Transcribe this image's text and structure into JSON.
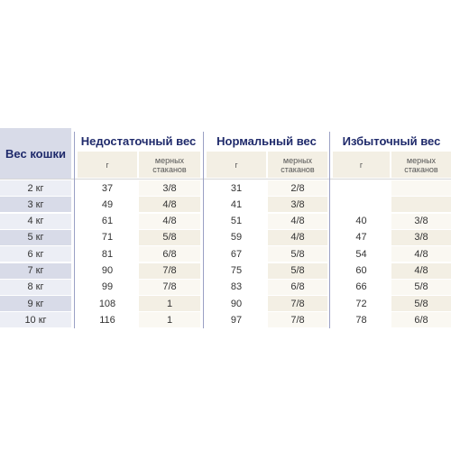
{
  "table": {
    "weight_header": "Вес кошки",
    "groups": [
      {
        "title": "Недостаточный вес",
        "grams_label": "г",
        "cups_label": "мерных стаканов"
      },
      {
        "title": "Нормальный вес",
        "grams_label": "г",
        "cups_label": "мерных стаканов"
      },
      {
        "title": "Избыточный вес",
        "grams_label": "г",
        "cups_label": "мерных стаканов"
      }
    ],
    "rows": [
      {
        "weight": "2 кг",
        "under_g": "37",
        "under_c": "3/8",
        "normal_g": "31",
        "normal_c": "2/8",
        "over_g": "",
        "over_c": ""
      },
      {
        "weight": "3 кг",
        "under_g": "49",
        "under_c": "4/8",
        "normal_g": "41",
        "normal_c": "3/8",
        "over_g": "",
        "over_c": ""
      },
      {
        "weight": "4 кг",
        "under_g": "61",
        "under_c": "4/8",
        "normal_g": "51",
        "normal_c": "4/8",
        "over_g": "40",
        "over_c": "3/8"
      },
      {
        "weight": "5 кг",
        "under_g": "71",
        "under_c": "5/8",
        "normal_g": "59",
        "normal_c": "4/8",
        "over_g": "47",
        "over_c": "3/8"
      },
      {
        "weight": "6 кг",
        "under_g": "81",
        "under_c": "6/8",
        "normal_g": "67",
        "normal_c": "5/8",
        "over_g": "54",
        "over_c": "4/8"
      },
      {
        "weight": "7 кг",
        "under_g": "90",
        "under_c": "7/8",
        "normal_g": "75",
        "normal_c": "5/8",
        "over_g": "60",
        "over_c": "4/8"
      },
      {
        "weight": "8 кг",
        "under_g": "99",
        "under_c": "7/8",
        "normal_g": "83",
        "normal_c": "6/8",
        "over_g": "66",
        "over_c": "5/8"
      },
      {
        "weight": "9 кг",
        "under_g": "108",
        "under_c": "1",
        "normal_g": "90",
        "normal_c": "7/8",
        "over_g": "72",
        "over_c": "5/8"
      },
      {
        "weight": "10 кг",
        "under_g": "116",
        "under_c": "1",
        "normal_g": "97",
        "normal_c": "7/8",
        "over_g": "78",
        "over_c": "6/8"
      }
    ]
  },
  "colors": {
    "header_text": "#1f2a6b",
    "weight_column_shade": "#d8dbe8",
    "cups_column_shade": "#f3efe4",
    "divider": "#9aa0c4"
  }
}
